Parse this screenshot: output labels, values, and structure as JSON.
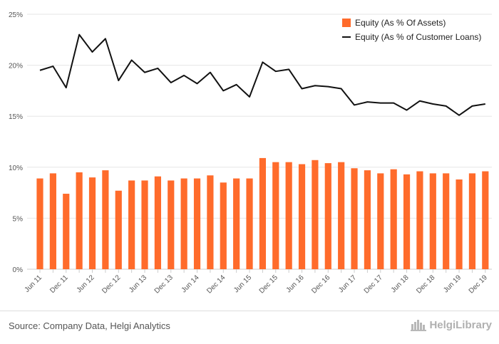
{
  "chart_data": {
    "type": "bar+line",
    "categories": [
      "Jun 11",
      "Sep 11",
      "Dec 11",
      "Mar 12",
      "Jun 12",
      "Sep 12",
      "Dec 12",
      "Mar 13",
      "Jun 13",
      "Sep 13",
      "Dec 13",
      "Mar 14",
      "Jun 14",
      "Sep 14",
      "Dec 14",
      "Mar 15",
      "Jun 15",
      "Sep 15",
      "Dec 15",
      "Mar 16",
      "Jun 16",
      "Sep 16",
      "Dec 16",
      "Mar 17",
      "Jun 17",
      "Sep 17",
      "Dec 17",
      "Mar 18",
      "Jun 18",
      "Sep 18",
      "Dec 18",
      "Mar 19",
      "Jun 19",
      "Sep 19",
      "Dec 19"
    ],
    "tick_labels": [
      "Jun 11",
      "Dec 11",
      "Jun 12",
      "Dec 12",
      "Jun 13",
      "Dec 13",
      "Jun 14",
      "Dec 14",
      "Jun 15",
      "Dec 15",
      "Jun 16",
      "Dec 16",
      "Jun 17",
      "Dec 17",
      "Jun 18",
      "Dec 18",
      "Jun 19",
      "Dec 19"
    ],
    "series": [
      {
        "name": "Equity (As % Of Assets)",
        "type": "bar",
        "color": "#ff6b2b",
        "values": [
          8.9,
          9.4,
          7.4,
          9.5,
          9.0,
          9.7,
          7.7,
          8.7,
          8.7,
          9.1,
          8.7,
          8.9,
          8.9,
          9.2,
          8.5,
          8.9,
          8.9,
          10.9,
          10.5,
          10.5,
          10.3,
          10.7,
          10.4,
          10.5,
          9.9,
          9.7,
          9.4,
          9.8,
          9.3,
          9.6,
          9.4,
          9.4,
          8.8,
          9.4,
          9.6
        ]
      },
      {
        "name": "Equity (As % of Customer Loans)",
        "type": "line",
        "color": "#111111",
        "values": [
          19.5,
          19.9,
          17.8,
          23.0,
          21.3,
          22.6,
          18.5,
          20.5,
          19.3,
          19.7,
          18.3,
          19.0,
          18.2,
          19.3,
          17.5,
          18.1,
          16.9,
          20.3,
          19.4,
          19.6,
          17.7,
          18.0,
          17.9,
          17.7,
          16.1,
          16.4,
          16.3,
          16.3,
          15.6,
          16.5,
          16.2,
          16.0,
          15.1,
          16.0,
          16.2
        ]
      }
    ],
    "y_ticks": [
      "0%",
      "5%",
      "10%",
      "15%",
      "20%",
      "25%"
    ],
    "ylim": [
      0,
      25
    ],
    "grid": true,
    "legend": "top-right"
  },
  "source_text": "Source: Company Data, Helgi Analytics",
  "brand": {
    "name": "HelgiLibrary",
    "icon": "helgi-library-logo-icon"
  }
}
